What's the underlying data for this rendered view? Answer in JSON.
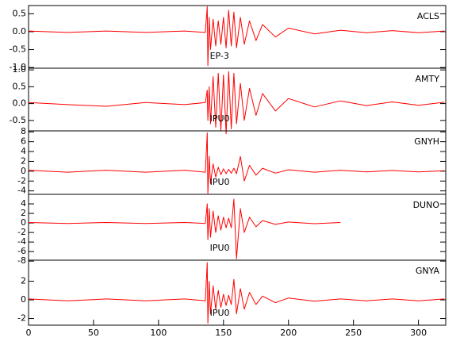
{
  "chart_data": [
    {
      "type": "line",
      "label": "ACLS",
      "annotation": "EP-3",
      "color": "#ff0000",
      "x": [
        0,
        30,
        60,
        90,
        120,
        136,
        137.5,
        138,
        139,
        140,
        142,
        144,
        146,
        148,
        150,
        152,
        154,
        156,
        158,
        160,
        163,
        166,
        170,
        175,
        180,
        190,
        200,
        220,
        240,
        260,
        280,
        300,
        320
      ],
      "values": [
        0.02,
        -0.02,
        0.02,
        -0.02,
        0.02,
        -0.02,
        0.7,
        -0.95,
        0.4,
        -0.5,
        0.35,
        -0.4,
        0.3,
        -0.35,
        0.4,
        -0.45,
        0.6,
        -0.4,
        0.55,
        -0.45,
        0.4,
        -0.35,
        0.3,
        -0.25,
        0.2,
        -0.15,
        0.1,
        -0.06,
        0.04,
        -0.03,
        0.03,
        -0.03,
        0.02
      ],
      "xlim": [
        0,
        321
      ],
      "ylim": [
        -1.02,
        0.73
      ],
      "yticks": [
        {
          "value": -1.0,
          "label": "-1.0"
        },
        -0.5,
        {
          "value": 0,
          "label": "0.0"
        },
        0.5
      ]
    },
    {
      "type": "line",
      "label": "AMTY",
      "annotation": "IPU0",
      "color": "#ff0000",
      "x": [
        0,
        30,
        60,
        90,
        120,
        136,
        137.5,
        138,
        139,
        140,
        142,
        144,
        146,
        148,
        150,
        152,
        154,
        156,
        158,
        160,
        163,
        166,
        170,
        175,
        180,
        190,
        200,
        220,
        240,
        260,
        280,
        300,
        320
      ],
      "values": [
        0.03,
        -0.03,
        -0.08,
        0.03,
        -0.03,
        0.03,
        0.4,
        -0.5,
        0.5,
        -0.6,
        0.8,
        -0.7,
        0.9,
        -0.8,
        0.85,
        -0.9,
        0.95,
        -0.75,
        0.9,
        -0.6,
        0.6,
        -0.5,
        0.45,
        -0.35,
        0.3,
        -0.22,
        0.15,
        -0.1,
        0.08,
        -0.06,
        0.05,
        -0.05,
        0.04
      ],
      "xlim": [
        0,
        321
      ],
      "ylim": [
        -0.81,
        1.05
      ],
      "yticks": [
        -0.5,
        {
          "value": 0,
          "label": "0.0"
        },
        0.5,
        {
          "value": 1.0,
          "label": "1.0"
        }
      ]
    },
    {
      "type": "line",
      "label": "GNYH",
      "annotation": "IPU0",
      "color": "#ff0000",
      "x": [
        0,
        30,
        60,
        90,
        120,
        136,
        137.5,
        138,
        139,
        140,
        142,
        144,
        146,
        148,
        150,
        152,
        154,
        156,
        158,
        160,
        163,
        166,
        170,
        175,
        180,
        190,
        200,
        220,
        240,
        260,
        280,
        300,
        320
      ],
      "values": [
        0.2,
        -0.2,
        0.2,
        -0.2,
        0.2,
        -0.2,
        7.8,
        -4.5,
        3,
        -2.5,
        1.5,
        -1.2,
        0.8,
        -0.7,
        0.5,
        -0.5,
        0.4,
        -0.4,
        0.6,
        -0.5,
        3,
        -2,
        1.2,
        -0.8,
        0.6,
        -0.4,
        0.3,
        -0.2,
        0.2,
        -0.15,
        0.15,
        -0.15,
        0.1
      ],
      "xlim": [
        0,
        321
      ],
      "ylim": [
        -4.7,
        8.2
      ],
      "yticks": [
        -4,
        -2,
        0,
        2,
        4,
        6,
        8
      ]
    },
    {
      "type": "line",
      "label": "DUNO",
      "annotation": "IPU0",
      "color": "#ff0000",
      "x": [
        0,
        30,
        60,
        90,
        120,
        136,
        137.5,
        138,
        139,
        140,
        142,
        144,
        146,
        148,
        150,
        152,
        154,
        156,
        158,
        160,
        163,
        166,
        170,
        175,
        180,
        190,
        200,
        220,
        240,
        260,
        280,
        300,
        320
      ],
      "values": [
        0.1,
        -0.1,
        0.1,
        -0.1,
        0.1,
        -0.1,
        4,
        -3.5,
        3,
        -3,
        2.5,
        -2,
        1.5,
        -1.5,
        1.2,
        -1,
        1,
        -1,
        5,
        -7.5,
        3,
        -2,
        1.2,
        -0.8,
        0.5,
        -0.3,
        0.2,
        -0.15,
        0.1,
        null,
        null,
        null,
        null
      ],
      "xlim": [
        0,
        321
      ],
      "ylim": [
        -7.8,
        6
      ],
      "yticks": [
        -8,
        -6,
        -4,
        -2,
        0,
        2,
        4
      ]
    },
    {
      "type": "line",
      "label": "GNYA",
      "annotation": "IPU0",
      "color": "#ff0000",
      "x": [
        0,
        30,
        60,
        90,
        120,
        136,
        137.5,
        138,
        139,
        140,
        142,
        144,
        146,
        148,
        150,
        152,
        154,
        156,
        158,
        160,
        163,
        166,
        170,
        175,
        180,
        190,
        200,
        220,
        240,
        260,
        280,
        300,
        320
      ],
      "values": [
        0.1,
        -0.1,
        0.1,
        -0.1,
        0.1,
        -0.1,
        4,
        -2.5,
        2,
        -1.5,
        1.5,
        -1,
        1,
        -0.8,
        0.6,
        -0.6,
        0.5,
        -0.5,
        2.2,
        -1.5,
        1.2,
        -1,
        0.8,
        -0.5,
        0.4,
        -0.3,
        0.2,
        -0.15,
        0.1,
        -0.1,
        0.1,
        -0.1,
        0.1
      ],
      "xlim": [
        0,
        321
      ],
      "ylim": [
        -2.72,
        4.26
      ],
      "yticks": [
        -2,
        0,
        2
      ],
      "xticks": [
        0,
        50,
        100,
        150,
        200,
        250,
        300
      ]
    }
  ]
}
